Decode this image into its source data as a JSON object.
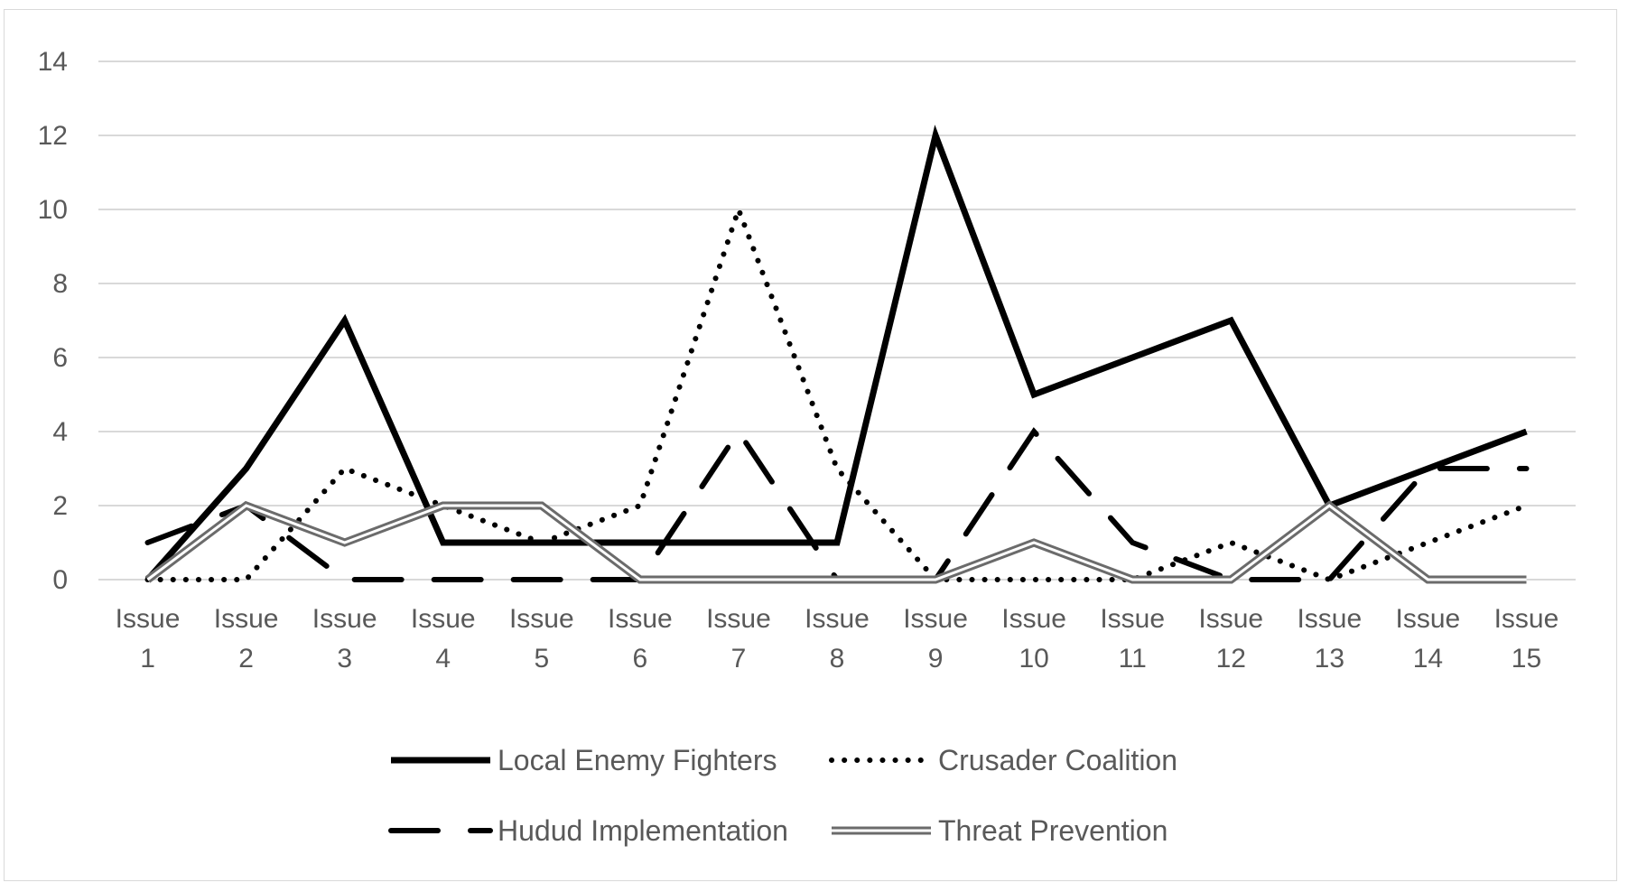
{
  "chart_data": {
    "type": "line",
    "title": "",
    "xlabel": "",
    "ylabel": "",
    "ylim": [
      0,
      14
    ],
    "yticks": [
      0,
      2,
      4,
      6,
      8,
      10,
      12,
      14
    ],
    "grid": "horizontal",
    "legend_position": "bottom",
    "categories": [
      [
        "Issue",
        "1"
      ],
      [
        "Issue",
        "2"
      ],
      [
        "Issue",
        "3"
      ],
      [
        "Issue",
        "4"
      ],
      [
        "Issue",
        "5"
      ],
      [
        "Issue",
        "6"
      ],
      [
        "Issue",
        "7"
      ],
      [
        "Issue",
        "8"
      ],
      [
        "Issue",
        "9"
      ],
      [
        "Issue",
        "10"
      ],
      [
        "Issue",
        "11"
      ],
      [
        "Issue",
        "12"
      ],
      [
        "Issue",
        "13"
      ],
      [
        "Issue",
        "14"
      ],
      [
        "Issue",
        "15"
      ]
    ],
    "series": [
      {
        "name": "Local Enemy Fighters",
        "style": "solid-thick",
        "color": "#000000",
        "values": [
          0,
          3,
          7,
          1,
          1,
          1,
          1,
          1,
          12,
          5,
          6,
          7,
          2,
          3,
          4
        ]
      },
      {
        "name": "Crusader Coalition",
        "style": "dotted",
        "color": "#000000",
        "values": [
          0,
          0,
          3,
          2,
          1,
          2,
          10,
          3,
          0,
          0,
          0,
          1,
          0,
          1,
          2
        ]
      },
      {
        "name": "Hudud Implementation",
        "style": "long-dash",
        "color": "#000000",
        "values": [
          1,
          2,
          0,
          0,
          0,
          0,
          4,
          0,
          0,
          4,
          1,
          0,
          0,
          3,
          3
        ]
      },
      {
        "name": "Threat Prevention",
        "style": "double-line",
        "color": "#6b6b6b",
        "values": [
          0,
          2,
          1,
          2,
          2,
          0,
          0,
          0,
          0,
          1,
          0,
          0,
          2,
          0,
          0
        ]
      }
    ]
  }
}
